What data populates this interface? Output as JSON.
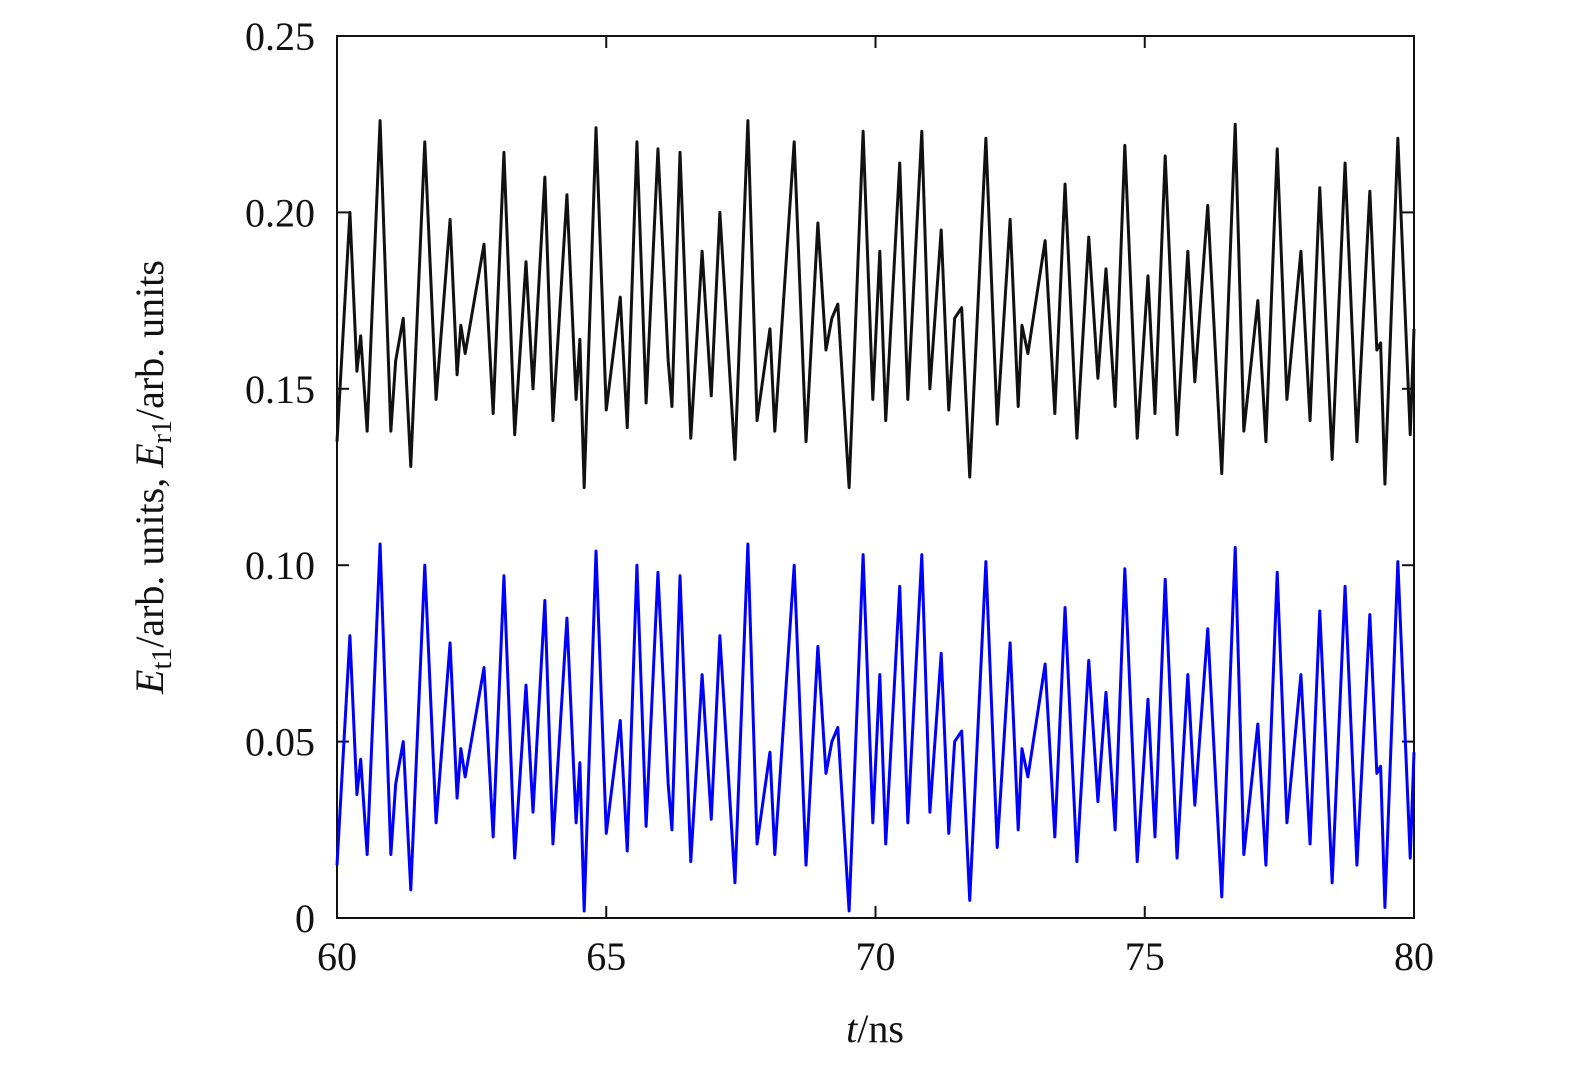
{
  "chart_data": {
    "type": "line",
    "xlabel": [
      "t",
      "/ns"
    ],
    "ylabel": [
      "E",
      "t1",
      "/arb. units, ",
      "E",
      "r1",
      "/arb. units"
    ],
    "xlim": [
      60,
      80
    ],
    "ylim": [
      0,
      0.25
    ],
    "xticks": [
      60,
      65,
      70,
      75,
      80
    ],
    "yticks": [
      0,
      0.05,
      {
        "value": 0.1,
        "label": "0.10"
      },
      0.15,
      {
        "value": 0.2,
        "label": "0.20"
      },
      0.25
    ],
    "grid": false,
    "x": [
      60.0,
      60.24,
      60.37,
      60.44,
      60.56,
      60.8,
      61.0,
      61.09,
      61.23,
      61.37,
      61.63,
      61.84,
      62.1,
      62.23,
      62.3,
      62.38,
      62.73,
      62.9,
      63.1,
      63.3,
      63.51,
      63.64,
      63.86,
      64.01,
      64.27,
      64.44,
      64.51,
      64.59,
      64.81,
      65.0,
      65.26,
      65.39,
      65.57,
      65.74,
      65.96,
      66.15,
      66.22,
      66.37,
      66.57,
      66.78,
      66.95,
      67.11,
      67.39,
      67.63,
      67.8,
      68.04,
      68.13,
      68.49,
      68.71,
      68.93,
      69.08,
      69.19,
      69.3,
      69.51,
      69.77,
      69.95,
      70.08,
      70.19,
      70.45,
      70.6,
      70.86,
      71.01,
      71.22,
      71.36,
      71.47,
      71.6,
      71.75,
      72.05,
      72.26,
      72.5,
      72.65,
      72.72,
      72.83,
      73.15,
      73.33,
      73.52,
      73.74,
      73.96,
      74.13,
      74.28,
      74.45,
      74.63,
      74.86,
      75.06,
      75.19,
      75.38,
      75.6,
      75.8,
      75.93,
      76.17,
      76.43,
      76.68,
      76.84,
      77.1,
      77.25,
      77.46,
      77.64,
      77.9,
      78.07,
      78.25,
      78.48,
      78.72,
      78.94,
      79.18,
      79.31,
      79.38,
      79.46,
      79.7,
      79.93,
      80.0
    ],
    "series": [
      {
        "color": "#111111",
        "values": [
          0.135,
          0.2,
          0.155,
          0.165,
          0.138,
          0.226,
          0.138,
          0.158,
          0.17,
          0.128,
          0.22,
          0.147,
          0.198,
          0.154,
          0.168,
          0.16,
          0.191,
          0.143,
          0.217,
          0.137,
          0.186,
          0.15,
          0.21,
          0.141,
          0.205,
          0.147,
          0.164,
          0.122,
          0.224,
          0.144,
          0.176,
          0.139,
          0.22,
          0.146,
          0.218,
          0.158,
          0.145,
          0.217,
          0.136,
          0.189,
          0.148,
          0.2,
          0.13,
          0.226,
          0.141,
          0.167,
          0.138,
          0.22,
          0.135,
          0.197,
          0.161,
          0.17,
          0.174,
          0.122,
          0.223,
          0.147,
          0.189,
          0.141,
          0.214,
          0.147,
          0.223,
          0.15,
          0.195,
          0.144,
          0.17,
          0.173,
          0.125,
          0.221,
          0.14,
          0.198,
          0.145,
          0.168,
          0.16,
          0.192,
          0.143,
          0.208,
          0.136,
          0.193,
          0.153,
          0.184,
          0.145,
          0.219,
          0.136,
          0.182,
          0.143,
          0.216,
          0.137,
          0.189,
          0.152,
          0.202,
          0.126,
          0.225,
          0.138,
          0.175,
          0.135,
          0.218,
          0.147,
          0.189,
          0.141,
          0.207,
          0.13,
          0.214,
          0.135,
          0.206,
          0.161,
          0.163,
          0.123,
          0.221,
          0.137,
          0.167
        ]
      },
      {
        "color": "#0000ff",
        "values": [
          0.015,
          0.08,
          0.035,
          0.045,
          0.018,
          0.106,
          0.018,
          0.038,
          0.05,
          0.008,
          0.1,
          0.027,
          0.078,
          0.034,
          0.048,
          0.04,
          0.071,
          0.023,
          0.097,
          0.017,
          0.066,
          0.03,
          0.09,
          0.021,
          0.085,
          0.027,
          0.044,
          0.002,
          0.104,
          0.024,
          0.056,
          0.019,
          0.1,
          0.026,
          0.098,
          0.038,
          0.025,
          0.097,
          0.016,
          0.069,
          0.028,
          0.08,
          0.01,
          0.106,
          0.021,
          0.047,
          0.018,
          0.1,
          0.015,
          0.077,
          0.041,
          0.05,
          0.054,
          0.002,
          0.103,
          0.027,
          0.069,
          0.021,
          0.094,
          0.027,
          0.103,
          0.03,
          0.075,
          0.024,
          0.05,
          0.053,
          0.005,
          0.101,
          0.02,
          0.078,
          0.025,
          0.048,
          0.04,
          0.072,
          0.023,
          0.088,
          0.016,
          0.073,
          0.033,
          0.064,
          0.025,
          0.099,
          0.016,
          0.062,
          0.023,
          0.096,
          0.017,
          0.069,
          0.032,
          0.082,
          0.006,
          0.105,
          0.018,
          0.055,
          0.015,
          0.098,
          0.027,
          0.069,
          0.021,
          0.087,
          0.01,
          0.094,
          0.015,
          0.086,
          0.041,
          0.043,
          0.003,
          0.101,
          0.017,
          0.047
        ]
      }
    ]
  }
}
